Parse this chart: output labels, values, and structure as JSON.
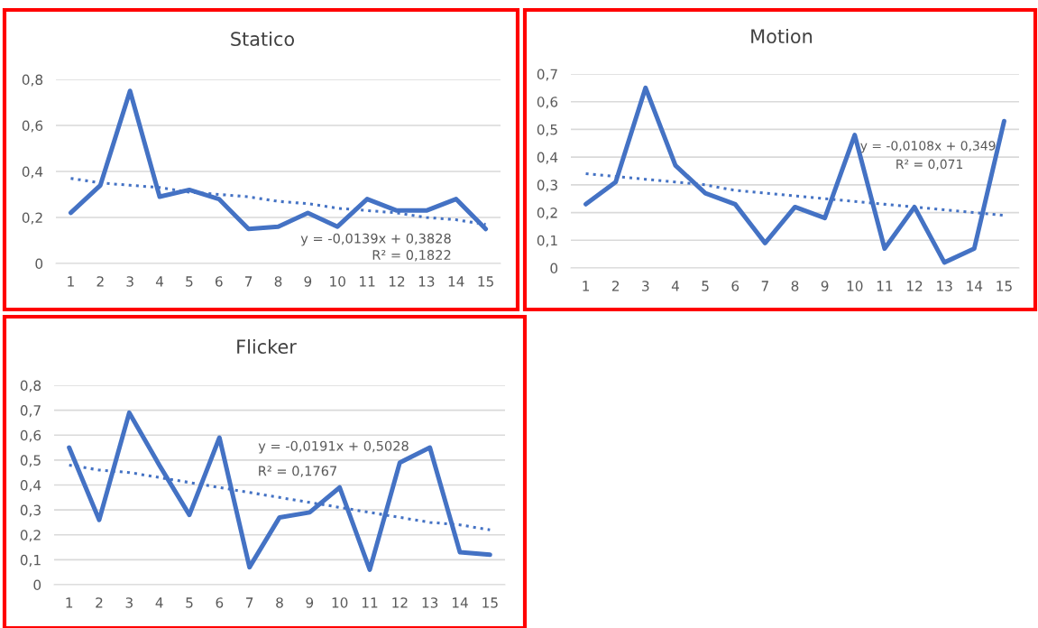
{
  "chart_data": [
    {
      "type": "line",
      "title": "Statico",
      "x": [
        1,
        2,
        3,
        4,
        5,
        6,
        7,
        8,
        9,
        10,
        11,
        12,
        13,
        14,
        15
      ],
      "xlim": [
        0.5,
        15.5
      ],
      "xticks": [
        1,
        2,
        3,
        4,
        5,
        6,
        7,
        8,
        9,
        10,
        11,
        12,
        13,
        14,
        15
      ],
      "ylim": [
        0,
        0.8
      ],
      "yticks": [
        0,
        {
          "value": 0.2,
          "label": "0,2"
        },
        {
          "value": 0.4,
          "label": "0,4"
        },
        {
          "value": 0.6,
          "label": "0,6"
        },
        {
          "value": 0.8,
          "label": "0,8"
        }
      ],
      "grid": "y",
      "legend": false,
      "series": [
        {
          "color": "#4472c4",
          "line_style": "solid",
          "values": [
            0.22,
            0.34,
            0.75,
            0.29,
            0.32,
            0.28,
            0.15,
            0.16,
            0.22,
            0.16,
            0.28,
            0.23,
            0.23,
            0.28,
            0.15
          ]
        },
        {
          "color": "#4472c4",
          "line_style": "dotted",
          "values": [
            0.37,
            0.35,
            0.34,
            0.33,
            0.31,
            0.3,
            0.29,
            0.27,
            0.26,
            0.24,
            0.23,
            0.22,
            0.2,
            0.19,
            0.17
          ]
        }
      ],
      "annotations": [
        "y = -0,0139x + 0,3828",
        "R² = 0,1822"
      ]
    },
    {
      "type": "line",
      "title": "Motion",
      "x": [
        1,
        2,
        3,
        4,
        5,
        6,
        7,
        8,
        9,
        10,
        11,
        12,
        13,
        14,
        15
      ],
      "xlim": [
        0.5,
        15.5
      ],
      "xticks": [
        1,
        2,
        3,
        4,
        5,
        6,
        7,
        8,
        9,
        10,
        11,
        12,
        13,
        14,
        15
      ],
      "ylim": [
        0,
        0.7
      ],
      "yticks": [
        0,
        {
          "value": 0.1,
          "label": "0,1"
        },
        {
          "value": 0.2,
          "label": "0,2"
        },
        {
          "value": 0.3,
          "label": "0,3"
        },
        {
          "value": 0.4,
          "label": "0,4"
        },
        {
          "value": 0.5,
          "label": "0,5"
        },
        {
          "value": 0.6,
          "label": "0,6"
        },
        {
          "value": 0.7,
          "label": "0,7"
        }
      ],
      "grid": "y",
      "legend": false,
      "series": [
        {
          "color": "#4472c4",
          "line_style": "solid",
          "values": [
            0.23,
            0.31,
            0.65,
            0.37,
            0.27,
            0.23,
            0.09,
            0.22,
            0.18,
            0.48,
            0.07,
            0.22,
            0.02,
            0.07,
            0.53
          ]
        },
        {
          "color": "#4472c4",
          "line_style": "dotted",
          "values": [
            0.34,
            0.33,
            0.32,
            0.31,
            0.3,
            0.28,
            0.27,
            0.26,
            0.25,
            0.24,
            0.23,
            0.22,
            0.21,
            0.2,
            0.19
          ]
        }
      ],
      "annotations": [
        "y = -0,0108x + 0,349",
        "R² = 0,071"
      ]
    },
    {
      "type": "line",
      "title": "Flicker",
      "x": [
        1,
        2,
        3,
        4,
        5,
        6,
        7,
        8,
        9,
        10,
        11,
        12,
        13,
        14,
        15
      ],
      "xlim": [
        0.5,
        15.5
      ],
      "xticks": [
        1,
        2,
        3,
        4,
        5,
        6,
        7,
        8,
        9,
        10,
        11,
        12,
        13,
        14,
        15
      ],
      "ylim": [
        0,
        0.8
      ],
      "yticks": [
        0,
        {
          "value": 0.1,
          "label": "0,1"
        },
        {
          "value": 0.2,
          "label": "0,2"
        },
        {
          "value": 0.3,
          "label": "0,3"
        },
        {
          "value": 0.4,
          "label": "0,4"
        },
        {
          "value": 0.5,
          "label": "0,5"
        },
        {
          "value": 0.6,
          "label": "0,6"
        },
        {
          "value": 0.7,
          "label": "0,7"
        },
        {
          "value": 0.8,
          "label": "0,8"
        }
      ],
      "grid": "y",
      "legend": false,
      "series": [
        {
          "color": "#4472c4",
          "line_style": "solid",
          "values": [
            0.55,
            0.26,
            0.69,
            0.48,
            0.28,
            0.59,
            0.07,
            0.27,
            0.29,
            0.39,
            0.06,
            0.49,
            0.55,
            0.13,
            0.12
          ]
        },
        {
          "color": "#4472c4",
          "line_style": "dotted",
          "values": [
            0.48,
            0.46,
            0.45,
            0.43,
            0.41,
            0.39,
            0.37,
            0.35,
            0.33,
            0.31,
            0.29,
            0.27,
            0.25,
            0.24,
            0.22
          ]
        }
      ],
      "annotations": [
        "y = -0,0191x + 0,5028",
        "R² = 0,1767"
      ]
    }
  ]
}
